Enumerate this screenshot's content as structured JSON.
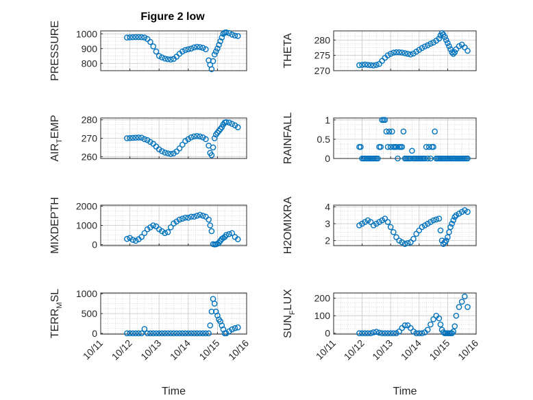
{
  "figure": {
    "title": "Figure 2 low"
  },
  "chart_data": [
    {
      "type": "scatter",
      "id": "pressure",
      "title": "Figure 2 low",
      "ylabel": "PRESSURE",
      "ylabel_parts": [
        [
          "PRESSURE",
          ""
        ]
      ],
      "ylim": [
        750,
        1020
      ],
      "yticks": [
        800,
        900,
        1000
      ],
      "yticklabels": [
        "800",
        "900",
        "1000"
      ],
      "xlabel": "",
      "grid": true,
      "series": [
        {
          "x": [
            11.9,
            12.0,
            12.1,
            12.2,
            12.3,
            12.4,
            12.5,
            12.6,
            12.7,
            12.8,
            12.9,
            13.0,
            13.1,
            13.2,
            13.3,
            13.4,
            13.5,
            13.6,
            13.7,
            13.8,
            13.9,
            14.0,
            14.1,
            14.2,
            14.3,
            14.4,
            14.5,
            14.6,
            14.7,
            14.75,
            14.8,
            14.85,
            14.9,
            14.95,
            15.0,
            15.05,
            15.1,
            15.15,
            15.2,
            15.25,
            15.3,
            15.4,
            15.5,
            15.6,
            15.7
          ],
          "y": [
            975,
            976,
            977,
            978,
            978,
            977,
            975,
            965,
            945,
            915,
            880,
            850,
            840,
            832,
            828,
            826,
            830,
            845,
            865,
            880,
            890,
            895,
            900,
            908,
            912,
            910,
            905,
            895,
            820,
            790,
            760,
            815,
            860,
            880,
            900,
            925,
            950,
            975,
            1000,
            1008,
            1010,
            1005,
            995,
            988,
            985
          ]
        }
      ]
    },
    {
      "type": "scatter",
      "id": "theta",
      "ylabel": "THETA",
      "ylabel_parts": [
        [
          "THETA",
          ""
        ]
      ],
      "ylim": [
        270,
        283
      ],
      "yticks": [
        270,
        275,
        280
      ],
      "yticklabels": [
        "270",
        "275",
        "280"
      ],
      "xlabel": "",
      "grid": true,
      "series": [
        {
          "x": [
            11.9,
            12.0,
            12.1,
            12.2,
            12.3,
            12.4,
            12.5,
            12.6,
            12.7,
            12.8,
            12.9,
            13.0,
            13.1,
            13.2,
            13.3,
            13.4,
            13.5,
            13.6,
            13.7,
            13.8,
            13.9,
            14.0,
            14.1,
            14.2,
            14.3,
            14.4,
            14.5,
            14.6,
            14.7,
            14.75,
            14.8,
            14.85,
            14.9,
            14.95,
            15.0,
            15.05,
            15.1,
            15.15,
            15.2,
            15.25,
            15.3,
            15.4,
            15.5,
            15.6,
            15.7
          ],
          "y": [
            271.8,
            271.9,
            272.0,
            271.9,
            271.8,
            271.7,
            271.9,
            272.2,
            273.2,
            274.2,
            275.0,
            275.5,
            275.9,
            276.0,
            276.0,
            275.9,
            275.7,
            275.5,
            275.3,
            275.6,
            276.2,
            276.8,
            277.4,
            277.9,
            278.3,
            278.8,
            279.2,
            279.8,
            280.5,
            281.5,
            282.3,
            281.8,
            281.0,
            280.0,
            279.0,
            278.0,
            277.0,
            276.0,
            275.5,
            276.0,
            277.0,
            278.0,
            278.5,
            277.6,
            276.5
          ]
        }
      ]
    },
    {
      "type": "scatter",
      "id": "air-temp",
      "ylabel": "AIR_TEMP",
      "ylabel_parts": [
        [
          "AIR",
          ""
        ],
        [
          "T",
          "sub"
        ],
        [
          "EMP",
          ""
        ]
      ],
      "ylim": [
        259,
        281
      ],
      "yticks": [
        260,
        270,
        280
      ],
      "yticklabels": [
        "260",
        "270",
        "280"
      ],
      "xlabel": "",
      "grid": true,
      "series": [
        {
          "x": [
            11.9,
            12.0,
            12.1,
            12.2,
            12.3,
            12.4,
            12.5,
            12.6,
            12.7,
            12.8,
            12.9,
            13.0,
            13.1,
            13.2,
            13.3,
            13.4,
            13.5,
            13.6,
            13.7,
            13.8,
            13.9,
            14.0,
            14.1,
            14.2,
            14.3,
            14.4,
            14.5,
            14.6,
            14.7,
            14.75,
            14.8,
            14.85,
            14.9,
            14.95,
            15.0,
            15.05,
            15.1,
            15.15,
            15.2,
            15.25,
            15.3,
            15.4,
            15.5,
            15.6,
            15.7
          ],
          "y": [
            270.0,
            270.1,
            270.2,
            270.3,
            270.4,
            270.3,
            269.5,
            269.0,
            268.0,
            267.0,
            265.5,
            264.0,
            263.0,
            262.2,
            261.8,
            261.5,
            261.8,
            262.8,
            264.5,
            266.5,
            268.5,
            269.5,
            270.5,
            271.0,
            271.2,
            271.0,
            270.5,
            269.5,
            266.0,
            262.0,
            260.8,
            265.0,
            270.0,
            272.0,
            273.0,
            274.0,
            275.0,
            276.0,
            277.5,
            278.5,
            278.8,
            278.5,
            277.8,
            277.0,
            276.0
          ]
        }
      ]
    },
    {
      "type": "scatter",
      "id": "rainfall",
      "ylabel": "RAINFALL",
      "ylabel_parts": [
        [
          "RAINFALL",
          ""
        ]
      ],
      "ylim": [
        0,
        1.05
      ],
      "yticks": [
        0,
        0.5,
        1
      ],
      "yticklabels": [
        "0",
        "0.5",
        "1"
      ],
      "xlabel": "",
      "grid": true,
      "series": [
        {
          "x": [
            11.9,
            11.95,
            12.0,
            12.05,
            12.1,
            12.15,
            12.2,
            12.25,
            12.3,
            12.35,
            12.4,
            12.45,
            12.5,
            12.55,
            12.6,
            12.65,
            12.7,
            12.75,
            12.8,
            12.85,
            12.9,
            12.95,
            13.0,
            13.05,
            13.1,
            13.15,
            13.2,
            13.25,
            13.3,
            13.35,
            13.4,
            13.45,
            13.5,
            13.55,
            13.6,
            13.65,
            13.7,
            13.75,
            13.8,
            13.85,
            13.9,
            13.95,
            14.0,
            14.05,
            14.1,
            14.15,
            14.2,
            14.25,
            14.3,
            14.35,
            14.4,
            14.45,
            14.5,
            14.55,
            14.6,
            14.65,
            14.7,
            14.75,
            14.8,
            14.85,
            14.9,
            14.95,
            15.0,
            15.05,
            15.1,
            15.15,
            15.2,
            15.25,
            15.3,
            15.35,
            15.4,
            15.45,
            15.5,
            15.55,
            15.6,
            15.65,
            15.7
          ],
          "y": [
            0.3,
            0.3,
            0.0,
            0.0,
            0.0,
            0.0,
            0.0,
            0.0,
            0.0,
            0.0,
            0.0,
            0.0,
            0.0,
            0.0,
            0.3,
            0.3,
            1.0,
            1.0,
            1.0,
            0.7,
            0.3,
            0.7,
            0.3,
            0.7,
            0.3,
            0.3,
            0.3,
            0.0,
            0.3,
            0.3,
            0.3,
            0.7,
            0.0,
            0.0,
            0.0,
            0.0,
            0.0,
            0.2,
            0.0,
            0.0,
            0.0,
            0.0,
            0.0,
            0.0,
            0.0,
            0.0,
            0.0,
            0.3,
            0.0,
            0.3,
            0.0,
            0.3,
            0.3,
            0.7,
            0.0,
            0.0,
            0.0,
            0.0,
            0.0,
            0.0,
            0.0,
            0.0,
            0.0,
            0.0,
            0.0,
            0.0,
            0.0,
            0.0,
            0.0,
            0.0,
            0.0,
            0.0,
            0.0,
            0.0,
            0.0,
            0.0,
            0.0
          ]
        }
      ]
    },
    {
      "type": "scatter",
      "id": "mixdepth",
      "ylabel": "MIXDEPTH",
      "ylabel_parts": [
        [
          "MIXDEPTH",
          ""
        ]
      ],
      "ylim": [
        -50,
        2050
      ],
      "yticks": [
        0,
        1000,
        2000
      ],
      "yticklabels": [
        "0",
        "1000",
        "2000"
      ],
      "xlabel": "",
      "grid": true,
      "series": [
        {
          "x": [
            11.9,
            12.0,
            12.1,
            12.2,
            12.3,
            12.4,
            12.5,
            12.6,
            12.7,
            12.8,
            12.9,
            13.0,
            13.1,
            13.2,
            13.3,
            13.4,
            13.5,
            13.6,
            13.7,
            13.8,
            13.9,
            14.0,
            14.1,
            14.2,
            14.3,
            14.4,
            14.5,
            14.6,
            14.7,
            14.75,
            14.8,
            14.85,
            14.9,
            14.95,
            15.0,
            15.05,
            15.1,
            15.15,
            15.2,
            15.25,
            15.3,
            15.4,
            15.5,
            15.6,
            15.7
          ],
          "y": [
            300,
            350,
            250,
            200,
            280,
            400,
            600,
            800,
            900,
            1000,
            950,
            800,
            700,
            600,
            650,
            900,
            1100,
            1200,
            1300,
            1350,
            1400,
            1400,
            1450,
            1450,
            1500,
            1550,
            1500,
            1450,
            1300,
            1000,
            700,
            30,
            10,
            20,
            50,
            100,
            200,
            300,
            350,
            400,
            500,
            550,
            600,
            400,
            280
          ]
        }
      ]
    },
    {
      "type": "scatter",
      "id": "h2omixra",
      "ylabel": "H2OMIXRA",
      "ylabel_parts": [
        [
          "H2OMIXRA",
          ""
        ]
      ],
      "ylim": [
        1.7,
        4.1
      ],
      "yticks": [
        2,
        3,
        4
      ],
      "yticklabels": [
        "2",
        "3",
        "4"
      ],
      "xlabel": "",
      "grid": true,
      "series": [
        {
          "x": [
            11.9,
            12.0,
            12.1,
            12.2,
            12.3,
            12.4,
            12.5,
            12.6,
            12.7,
            12.8,
            12.9,
            13.0,
            13.1,
            13.2,
            13.3,
            13.4,
            13.5,
            13.6,
            13.7,
            13.8,
            13.9,
            14.0,
            14.1,
            14.2,
            14.3,
            14.4,
            14.5,
            14.6,
            14.7,
            14.75,
            14.8,
            14.85,
            14.9,
            14.95,
            15.0,
            15.05,
            15.1,
            15.15,
            15.2,
            15.25,
            15.3,
            15.4,
            15.5,
            15.6,
            15.7
          ],
          "y": [
            2.9,
            3.0,
            3.1,
            3.2,
            3.1,
            2.9,
            3.0,
            3.1,
            3.2,
            3.3,
            3.1,
            2.8,
            2.5,
            2.2,
            2.0,
            1.9,
            1.8,
            1.85,
            1.9,
            2.1,
            2.4,
            2.6,
            2.8,
            2.9,
            3.0,
            3.1,
            3.2,
            3.25,
            3.3,
            2.6,
            2.0,
            1.8,
            1.9,
            2.0,
            2.2,
            2.5,
            2.8,
            3.0,
            3.2,
            3.4,
            3.5,
            3.6,
            3.7,
            3.8,
            3.7
          ]
        }
      ]
    },
    {
      "type": "scatter",
      "id": "terr-msl",
      "ylabel": "TERR_MSL",
      "ylabel_parts": [
        [
          "TERR",
          ""
        ],
        [
          "M",
          "sub"
        ],
        [
          "SL",
          ""
        ]
      ],
      "ylim": [
        -20,
        1020
      ],
      "yticks": [
        0,
        500,
        1000
      ],
      "yticklabels": [
        "0",
        "500",
        "1000"
      ],
      "xlabel": "Time",
      "xticklabels": [
        "10/11",
        "10/12",
        "10/13",
        "10/14",
        "10/15",
        "10/16"
      ],
      "grid": true,
      "series": [
        {
          "x": [
            11.9,
            12.0,
            12.1,
            12.2,
            12.3,
            12.4,
            12.5,
            12.6,
            12.7,
            12.8,
            12.9,
            13.0,
            13.1,
            13.2,
            13.3,
            13.4,
            13.5,
            13.6,
            13.7,
            13.8,
            13.9,
            14.0,
            14.1,
            14.2,
            14.3,
            14.4,
            14.5,
            14.6,
            14.7,
            14.75,
            14.8,
            14.85,
            14.9,
            14.95,
            15.0,
            15.05,
            15.1,
            15.15,
            15.2,
            15.25,
            15.3,
            15.4,
            15.5,
            15.6,
            15.7
          ],
          "y": [
            0,
            0,
            0,
            0,
            0,
            0,
            110,
            0,
            0,
            0,
            0,
            0,
            0,
            0,
            0,
            0,
            0,
            0,
            0,
            0,
            0,
            0,
            0,
            0,
            0,
            0,
            0,
            0,
            0,
            200,
            550,
            870,
            750,
            550,
            450,
            350,
            300,
            200,
            100,
            0,
            0,
            50,
            100,
            130,
            150
          ]
        }
      ]
    },
    {
      "type": "scatter",
      "id": "sun-flux",
      "ylabel": "SUN_FLUX",
      "ylabel_parts": [
        [
          "SUN",
          ""
        ],
        [
          "F",
          "sub"
        ],
        [
          "LUX",
          ""
        ]
      ],
      "ylim": [
        -5,
        230
      ],
      "yticks": [
        0,
        100,
        200
      ],
      "yticklabels": [
        "0",
        "100",
        "200"
      ],
      "xlabel": "Time",
      "xticklabels": [
        "10/11",
        "10/12",
        "10/13",
        "10/14",
        "10/15",
        "10/16"
      ],
      "grid": true,
      "series": [
        {
          "x": [
            11.9,
            12.0,
            12.1,
            12.2,
            12.3,
            12.4,
            12.5,
            12.6,
            12.7,
            12.8,
            12.9,
            13.0,
            13.1,
            13.2,
            13.3,
            13.4,
            13.5,
            13.6,
            13.7,
            13.8,
            13.9,
            14.0,
            14.1,
            14.2,
            14.3,
            14.4,
            14.5,
            14.6,
            14.7,
            14.75,
            14.8,
            14.85,
            14.9,
            14.95,
            15.0,
            15.05,
            15.1,
            15.15,
            15.2,
            15.25,
            15.3,
            15.4,
            15.5,
            15.6,
            15.7
          ],
          "y": [
            0,
            0,
            0,
            0,
            0,
            5,
            8,
            3,
            0,
            0,
            0,
            0,
            0,
            0,
            10,
            30,
            45,
            45,
            30,
            10,
            0,
            0,
            0,
            5,
            20,
            50,
            80,
            100,
            85,
            50,
            20,
            5,
            0,
            0,
            0,
            0,
            0,
            0,
            10,
            40,
            100,
            150,
            180,
            210,
            150
          ]
        }
      ]
    }
  ]
}
